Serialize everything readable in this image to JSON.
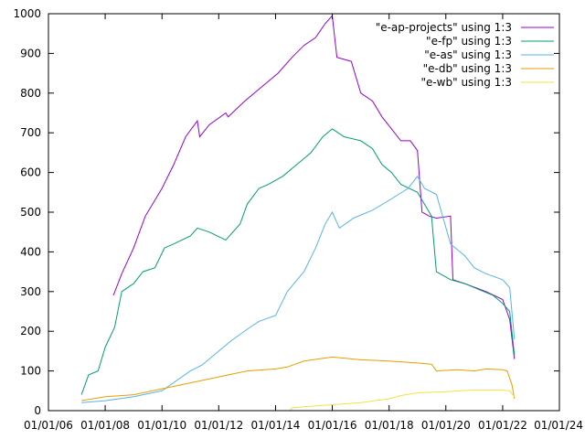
{
  "chart_data": {
    "type": "line",
    "title": "",
    "xlabel": "",
    "ylabel": "",
    "xlim": [
      "2006-01-01",
      "2024-01-01"
    ],
    "ylim": [
      0,
      1000
    ],
    "grid": false,
    "legend_position": "top-right",
    "x_ticks": [
      "2006-01-01",
      "2008-01-01",
      "2010-01-01",
      "2012-01-01",
      "2014-01-01",
      "2016-01-01",
      "2018-01-01",
      "2020-01-01",
      "2022-01-01",
      "2024-01-01"
    ],
    "x_tick_labels": [
      "01/01/06",
      "01/01/08",
      "01/01/10",
      "01/01/12",
      "01/01/14",
      "01/01/16",
      "01/01/18",
      "01/01/20",
      "01/01/22",
      "01/01/24"
    ],
    "y_ticks": [
      0,
      100,
      200,
      300,
      400,
      500,
      600,
      700,
      800,
      900,
      1000
    ],
    "y_tick_labels": [
      "0",
      "100",
      "200",
      "300",
      "400",
      "500",
      "600",
      "700",
      "800",
      "900",
      "1000"
    ],
    "series": [
      {
        "name": "\"e-ap-projects\" using 1:3",
        "color": "#9400d3",
        "points": [
          [
            "2008-04-15",
            290
          ],
          [
            "2008-08-01",
            345
          ],
          [
            "2009-01-01",
            410
          ],
          [
            "2009-06-01",
            490
          ],
          [
            "2010-01-01",
            560
          ],
          [
            "2010-06-01",
            620
          ],
          [
            "2010-11-01",
            690
          ],
          [
            "2011-04-01",
            730
          ],
          [
            "2011-05-01",
            690
          ],
          [
            "2011-09-01",
            720
          ],
          [
            "2012-04-01",
            750
          ],
          [
            "2012-05-01",
            740
          ],
          [
            "2012-12-01",
            780
          ],
          [
            "2013-06-01",
            810
          ],
          [
            "2014-02-01",
            850
          ],
          [
            "2014-08-01",
            890
          ],
          [
            "2015-01-01",
            920
          ],
          [
            "2015-06-01",
            940
          ],
          [
            "2015-10-01",
            975
          ],
          [
            "2016-01-01",
            995
          ],
          [
            "2016-03-01",
            890
          ],
          [
            "2016-09-01",
            880
          ],
          [
            "2017-01-01",
            800
          ],
          [
            "2017-06-01",
            780
          ],
          [
            "2017-10-01",
            740
          ],
          [
            "2018-02-01",
            710
          ],
          [
            "2018-06-01",
            680
          ],
          [
            "2018-10-01",
            680
          ],
          [
            "2019-01-01",
            655
          ],
          [
            "2019-03-01",
            500
          ],
          [
            "2019-06-01",
            490
          ],
          [
            "2019-09-01",
            485
          ],
          [
            "2020-03-01",
            490
          ],
          [
            "2020-04-01",
            330
          ],
          [
            "2020-09-01",
            320
          ],
          [
            "2021-06-01",
            300
          ],
          [
            "2022-01-01",
            280
          ],
          [
            "2022-04-01",
            230
          ],
          [
            "2022-06-01",
            130
          ]
        ]
      },
      {
        "name": "\"e-fp\" using 1:3",
        "color": "#009e73",
        "points": [
          [
            "2007-03-01",
            40
          ],
          [
            "2007-06-01",
            90
          ],
          [
            "2007-10-01",
            100
          ],
          [
            "2008-01-01",
            160
          ],
          [
            "2008-05-01",
            210
          ],
          [
            "2008-08-01",
            300
          ],
          [
            "2009-01-01",
            320
          ],
          [
            "2009-05-01",
            350
          ],
          [
            "2009-10-01",
            360
          ],
          [
            "2010-02-01",
            410
          ],
          [
            "2010-06-01",
            420
          ],
          [
            "2011-01-01",
            440
          ],
          [
            "2011-04-01",
            460
          ],
          [
            "2011-09-01",
            450
          ],
          [
            "2012-04-01",
            430
          ],
          [
            "2012-10-01",
            470
          ],
          [
            "2013-01-01",
            520
          ],
          [
            "2013-06-01",
            560
          ],
          [
            "2013-10-01",
            570
          ],
          [
            "2014-04-01",
            590
          ],
          [
            "2014-10-01",
            620
          ],
          [
            "2015-04-01",
            650
          ],
          [
            "2015-09-01",
            690
          ],
          [
            "2016-01-01",
            710
          ],
          [
            "2016-06-01",
            690
          ],
          [
            "2017-01-01",
            680
          ],
          [
            "2017-06-01",
            660
          ],
          [
            "2017-10-01",
            620
          ],
          [
            "2018-02-01",
            600
          ],
          [
            "2018-06-01",
            570
          ],
          [
            "2019-01-01",
            550
          ],
          [
            "2019-07-01",
            490
          ],
          [
            "2019-09-01",
            350
          ],
          [
            "2020-03-01",
            330
          ],
          [
            "2020-09-01",
            320
          ],
          [
            "2021-03-01",
            305
          ],
          [
            "2021-09-01",
            290
          ],
          [
            "2022-01-01",
            270
          ],
          [
            "2022-04-01",
            250
          ],
          [
            "2022-06-01",
            140
          ]
        ]
      },
      {
        "name": "\"e-as\" using 1:3",
        "color": "#56b4e9",
        "points": [
          [
            "2007-03-01",
            20
          ],
          [
            "2008-01-01",
            25
          ],
          [
            "2009-01-01",
            35
          ],
          [
            "2010-01-01",
            50
          ],
          [
            "2011-01-01",
            100
          ],
          [
            "2011-06-01",
            115
          ],
          [
            "2012-01-01",
            150
          ],
          [
            "2012-06-01",
            175
          ],
          [
            "2013-01-01",
            205
          ],
          [
            "2013-06-01",
            225
          ],
          [
            "2014-01-01",
            240
          ],
          [
            "2014-06-01",
            300
          ],
          [
            "2015-01-01",
            350
          ],
          [
            "2015-06-01",
            410
          ],
          [
            "2015-10-01",
            470
          ],
          [
            "2016-01-01",
            500
          ],
          [
            "2016-04-01",
            460
          ],
          [
            "2016-10-01",
            485
          ],
          [
            "2017-06-01",
            505
          ],
          [
            "2018-01-01",
            530
          ],
          [
            "2018-09-01",
            560
          ],
          [
            "2019-01-01",
            590
          ],
          [
            "2019-04-01",
            560
          ],
          [
            "2019-09-01",
            545
          ],
          [
            "2020-03-01",
            420
          ],
          [
            "2020-09-01",
            390
          ],
          [
            "2021-01-01",
            360
          ],
          [
            "2021-06-01",
            345
          ],
          [
            "2022-01-01",
            330
          ],
          [
            "2022-04-01",
            310
          ],
          [
            "2022-06-01",
            180
          ]
        ]
      },
      {
        "name": "\"e-db\" using 1:3",
        "color": "#e69f00",
        "points": [
          [
            "2007-03-01",
            25
          ],
          [
            "2008-01-01",
            35
          ],
          [
            "2009-01-01",
            40
          ],
          [
            "2010-01-01",
            55
          ],
          [
            "2011-01-01",
            70
          ],
          [
            "2012-01-01",
            85
          ],
          [
            "2013-01-01",
            100
          ],
          [
            "2014-01-01",
            105
          ],
          [
            "2014-06-01",
            110
          ],
          [
            "2015-01-01",
            125
          ],
          [
            "2016-01-01",
            135
          ],
          [
            "2017-01-01",
            128
          ],
          [
            "2018-01-01",
            125
          ],
          [
            "2019-01-01",
            120
          ],
          [
            "2019-07-01",
            117
          ],
          [
            "2019-09-01",
            100
          ],
          [
            "2020-06-01",
            103
          ],
          [
            "2021-01-01",
            100
          ],
          [
            "2021-06-01",
            105
          ],
          [
            "2022-01-01",
            103
          ],
          [
            "2022-03-01",
            100
          ],
          [
            "2022-05-01",
            65
          ],
          [
            "2022-06-01",
            30
          ]
        ]
      },
      {
        "name": "\"e-wb\" using 1:3",
        "color": "#f0e442",
        "points": [
          [
            "2014-07-01",
            0
          ],
          [
            "2014-08-01",
            7
          ],
          [
            "2015-01-01",
            10
          ],
          [
            "2016-01-01",
            15
          ],
          [
            "2017-01-01",
            20
          ],
          [
            "2018-01-01",
            30
          ],
          [
            "2018-06-01",
            38
          ],
          [
            "2019-01-01",
            45
          ],
          [
            "2020-01-01",
            48
          ],
          [
            "2021-01-01",
            52
          ],
          [
            "2022-01-01",
            52
          ],
          [
            "2022-04-01",
            50
          ],
          [
            "2022-06-01",
            35
          ]
        ]
      }
    ]
  }
}
